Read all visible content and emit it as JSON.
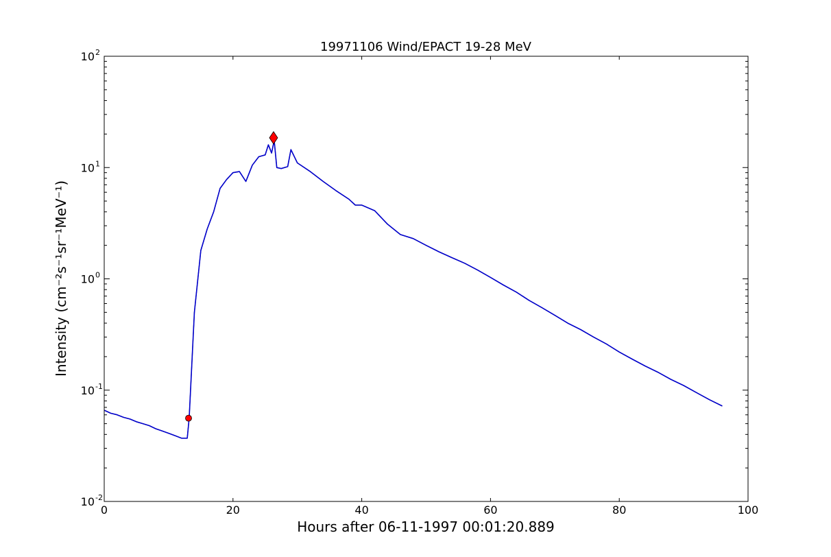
{
  "chart_data": {
    "type": "line",
    "title": "19971106 Wind/EPACT 19-28 MeV",
    "xlabel": "Hours after 06-11-1997 00:01:20.889",
    "ylabel": "Intensity (cm⁻²s⁻¹sr⁻¹MeV⁻¹)",
    "xlim": [
      0,
      100
    ],
    "ylim": [
      0.01,
      100
    ],
    "yscale": "log",
    "grid": false,
    "x_ticks": [
      "0",
      "20",
      "40",
      "60",
      "80",
      "100"
    ],
    "y_tick_base": "10",
    "y_tick_exponents": [
      "-2",
      "-1",
      "0",
      "1",
      "2"
    ],
    "series": [
      {
        "role": "raw",
        "color": "#000000",
        "x": [
          0,
          1,
          2,
          3,
          4,
          5,
          6,
          7,
          8,
          9,
          10,
          11,
          12,
          12.9,
          13.2,
          14,
          15,
          16,
          17,
          18,
          19,
          20,
          21,
          22,
          23,
          24,
          25,
          25.5,
          26,
          26.4,
          26.8,
          27.5,
          28.5,
          29,
          30,
          32,
          34,
          36,
          38,
          39,
          40,
          42,
          44,
          46,
          48,
          50,
          52,
          54,
          56,
          58,
          60,
          62,
          64,
          66,
          68,
          70,
          72,
          74,
          76,
          78,
          80,
          82,
          84,
          86,
          88,
          90,
          92,
          94,
          96
        ],
        "y": [
          0.066,
          0.062,
          0.06,
          0.057,
          0.055,
          0.052,
          0.05,
          0.048,
          0.045,
          0.043,
          0.041,
          0.039,
          0.037,
          0.037,
          0.056,
          0.5,
          1.8,
          2.8,
          4.0,
          6.5,
          7.8,
          9.0,
          9.2,
          7.5,
          10.5,
          12.5,
          13.0,
          16.0,
          13.5,
          17.5,
          10.0,
          9.8,
          10.2,
          14.5,
          11.0,
          9.2,
          7.5,
          6.2,
          5.2,
          4.6,
          4.6,
          4.1,
          3.1,
          2.5,
          2.3,
          2.0,
          1.75,
          1.55,
          1.38,
          1.2,
          1.03,
          0.88,
          0.76,
          0.64,
          0.55,
          0.47,
          0.4,
          0.35,
          0.3,
          0.26,
          0.22,
          0.19,
          0.165,
          0.145,
          0.125,
          0.11,
          0.095,
          0.082,
          0.072
        ]
      },
      {
        "role": "smoothed",
        "color": "#0000cc",
        "x": [
          0,
          1,
          2,
          3,
          4,
          5,
          6,
          7,
          8,
          9,
          10,
          11,
          12,
          12.9,
          13.2,
          14,
          15,
          16,
          17,
          18,
          19,
          20,
          21,
          22,
          23,
          24,
          25,
          25.5,
          26,
          26.4,
          26.8,
          27.5,
          28.5,
          29,
          30,
          32,
          34,
          36,
          38,
          39,
          40,
          42,
          44,
          46,
          48,
          50,
          52,
          54,
          56,
          58,
          60,
          62,
          64,
          66,
          68,
          70,
          72,
          74,
          76,
          78,
          80,
          82,
          84,
          86,
          88,
          90,
          92,
          94,
          96
        ],
        "y": [
          0.066,
          0.062,
          0.06,
          0.057,
          0.055,
          0.052,
          0.05,
          0.048,
          0.045,
          0.043,
          0.041,
          0.039,
          0.037,
          0.037,
          0.056,
          0.5,
          1.8,
          2.8,
          4.0,
          6.5,
          7.8,
          9.0,
          9.2,
          7.5,
          10.5,
          12.5,
          13.0,
          16.0,
          13.5,
          17.5,
          10.0,
          9.8,
          10.2,
          14.5,
          11.0,
          9.2,
          7.5,
          6.2,
          5.2,
          4.6,
          4.6,
          4.1,
          3.1,
          2.5,
          2.3,
          2.0,
          1.75,
          1.55,
          1.38,
          1.2,
          1.03,
          0.88,
          0.76,
          0.64,
          0.55,
          0.47,
          0.4,
          0.35,
          0.3,
          0.26,
          0.22,
          0.19,
          0.165,
          0.145,
          0.125,
          0.11,
          0.095,
          0.082,
          0.072
        ]
      }
    ],
    "markers": [
      {
        "name": "onset",
        "shape": "circle",
        "color": "#ff0000",
        "x": 13.1,
        "y": 0.056
      },
      {
        "name": "peak",
        "shape": "diamond",
        "color": "#ff0000",
        "x": 26.3,
        "y": 18.5
      }
    ]
  }
}
